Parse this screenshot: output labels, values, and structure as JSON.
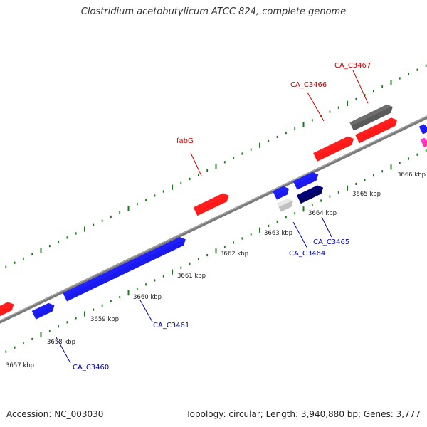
{
  "title": "Clostridium acetobutylicum ATCC 824, complete genome",
  "footer": {
    "accession": "Accession: NC_003030",
    "summary": "Topology: circular; Length: 3,940,880 bp; Genes: 3,777"
  },
  "colors": {
    "forward_label": "#cc0000",
    "reverse_label": "#0000aa",
    "backbone": "#888888",
    "tick": "#1a7a1a",
    "forward_gene": "#ff1a1a",
    "reverse_gene": "#1a1aee",
    "dark_reverse_gene": "#000066",
    "grey_gene": "#5a5a5a",
    "light_grey_gene": "#c0c0c0",
    "magenta_gene": "#ff33aa"
  },
  "kbp_ticks": [
    "3657 kbp",
    "3658 kbp",
    "3659 kbp",
    "3660 kbp",
    "3661 kbp",
    "3662 kbp",
    "3663 kbp",
    "3664 kbp",
    "3665 kbp",
    "3666 kbp"
  ],
  "gene_labels": [
    {
      "text": "fabG",
      "strand": "forward"
    },
    {
      "text": "CA_C3466",
      "strand": "forward"
    },
    {
      "text": "CA_C3467",
      "strand": "forward"
    },
    {
      "text": "CA_C3460",
      "strand": "reverse"
    },
    {
      "text": "CA_C3461",
      "strand": "reverse"
    },
    {
      "text": "CA_C3464",
      "strand": "reverse"
    },
    {
      "text": "CA_C3465",
      "strand": "reverse"
    }
  ]
}
